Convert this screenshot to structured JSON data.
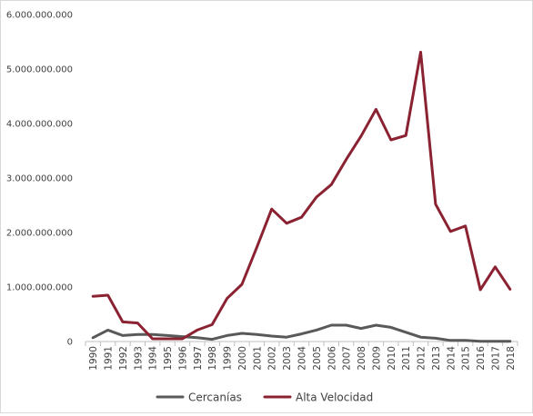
{
  "chart_data": {
    "type": "line",
    "title": "",
    "xlabel": "",
    "ylabel": "",
    "x": [
      "1990",
      "1991",
      "1992",
      "1993",
      "1994",
      "1995",
      "1996",
      "1997",
      "1998",
      "1999",
      "2000",
      "2001",
      "2002",
      "2003",
      "2004",
      "2005",
      "2006",
      "2007",
      "2008",
      "2009",
      "2010",
      "2011",
      "2012",
      "2013",
      "2014",
      "2015",
      "2016",
      "2017",
      "2018"
    ],
    "ylim": [
      0,
      6000000000
    ],
    "yticks": [
      0,
      1000000000,
      2000000000,
      3000000000,
      4000000000,
      5000000000,
      6000000000
    ],
    "ytick_labels": [
      "0",
      "1.000.000.000",
      "2.000.000.000",
      "3.000.000.000",
      "4.000.000.000",
      "5.000.000.000",
      "6.000.000.000"
    ],
    "grid": false,
    "legend_position": "bottom",
    "series": [
      {
        "name": "Cercanías",
        "color": "#595959",
        "values": [
          70000000,
          210000000,
          110000000,
          130000000,
          130000000,
          110000000,
          90000000,
          70000000,
          40000000,
          110000000,
          150000000,
          130000000,
          100000000,
          80000000,
          140000000,
          210000000,
          300000000,
          300000000,
          240000000,
          300000000,
          260000000,
          170000000,
          80000000,
          60000000,
          20000000,
          20000000,
          5000000,
          5000000,
          5000000
        ]
      },
      {
        "name": "Alta Velocidad",
        "color": "#8b2232",
        "values": [
          830000000,
          850000000,
          360000000,
          340000000,
          50000000,
          50000000,
          50000000,
          210000000,
          310000000,
          790000000,
          1050000000,
          1730000000,
          2430000000,
          2170000000,
          2280000000,
          2650000000,
          2880000000,
          3340000000,
          3770000000,
          4260000000,
          3700000000,
          3780000000,
          5310000000,
          2520000000,
          2020000000,
          2120000000,
          950000000,
          1370000000,
          960000000
        ]
      }
    ]
  }
}
